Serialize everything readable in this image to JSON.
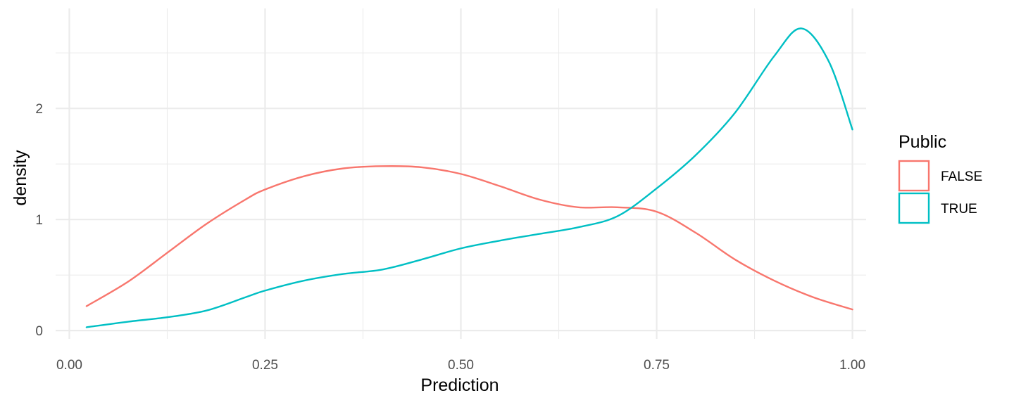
{
  "chart_data": {
    "type": "line",
    "xlabel": "Prediction",
    "ylabel": "density",
    "xlim": [
      -0.0175,
      1.0175
    ],
    "ylim": [
      -0.075,
      2.9
    ],
    "x_ticks": [
      0.0,
      0.25,
      0.5,
      0.75,
      1.0
    ],
    "x_tick_labels": [
      "0.00",
      "0.25",
      "0.50",
      "0.75",
      "1.00"
    ],
    "y_ticks": [
      0,
      1,
      2
    ],
    "y_tick_labels": [
      "0",
      "1",
      "2"
    ],
    "grid": true,
    "legend": {
      "title": "Public",
      "position": "right",
      "entries": [
        "FALSE",
        "TRUE"
      ]
    },
    "series": [
      {
        "name": "FALSE",
        "color": "#F8766D",
        "x": [
          0.022,
          0.075,
          0.125,
          0.175,
          0.225,
          0.25,
          0.3,
          0.35,
          0.4,
          0.45,
          0.5,
          0.55,
          0.6,
          0.65,
          0.7,
          0.75,
          0.8,
          0.85,
          0.9,
          0.95,
          1.0
        ],
        "y": [
          0.22,
          0.44,
          0.7,
          0.96,
          1.18,
          1.27,
          1.39,
          1.46,
          1.48,
          1.47,
          1.41,
          1.3,
          1.18,
          1.11,
          1.11,
          1.07,
          0.88,
          0.64,
          0.45,
          0.3,
          0.19
        ]
      },
      {
        "name": "TRUE",
        "color": "#00BFC4",
        "x": [
          0.022,
          0.075,
          0.125,
          0.175,
          0.225,
          0.25,
          0.3,
          0.35,
          0.4,
          0.45,
          0.5,
          0.55,
          0.6,
          0.65,
          0.7,
          0.75,
          0.8,
          0.85,
          0.9,
          0.935,
          0.97,
          1.0
        ],
        "y": [
          0.03,
          0.08,
          0.12,
          0.18,
          0.3,
          0.36,
          0.45,
          0.51,
          0.55,
          0.64,
          0.74,
          0.81,
          0.87,
          0.93,
          1.03,
          1.28,
          1.58,
          1.96,
          2.47,
          2.72,
          2.42,
          1.81
        ]
      }
    ]
  }
}
